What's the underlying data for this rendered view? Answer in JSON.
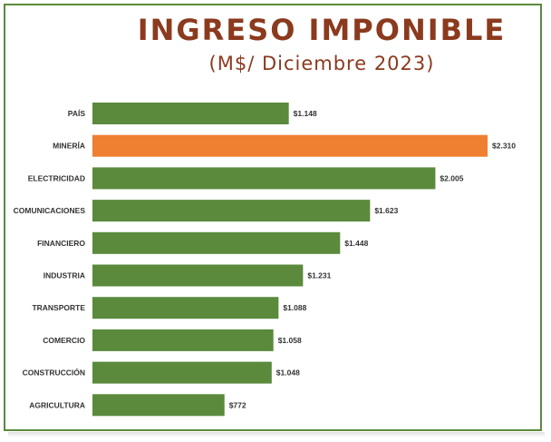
{
  "header": {
    "title": "INGRESO IMPONIBLE",
    "subtitle": "(M$/ Diciembre 2023)"
  },
  "colors": {
    "bar_default": "#5b8a3c",
    "bar_highlight": "#ef7f31",
    "title": "#8b3a1e",
    "frame": "#5b8a3c"
  },
  "chart_data": {
    "type": "bar",
    "orientation": "horizontal",
    "title": "INGRESO IMPONIBLE",
    "subtitle": "(M$/ Diciembre 2023)",
    "categories": [
      "PAÍS",
      "MINERÍA",
      "ELECTRICIDAD",
      "COMUNICACIONES",
      "FINANCIERO",
      "INDUSTRIA",
      "TRANSPORTE",
      "COMERCIO",
      "CONSTRUCCIÓN",
      "AGRICULTURA"
    ],
    "values": [
      1148,
      2310,
      2005,
      1623,
      1448,
      1231,
      1088,
      1058,
      1048,
      772
    ],
    "value_labels": [
      "$1.148",
      "$2.310",
      "$2.005",
      "$1.623",
      "$1.448",
      "$1.231",
      "$1.088",
      "$1.058",
      "$1.048",
      "$772"
    ],
    "highlight_category": "MINERÍA",
    "xlim": [
      0,
      2310
    ],
    "grid": false,
    "legend": "none"
  }
}
